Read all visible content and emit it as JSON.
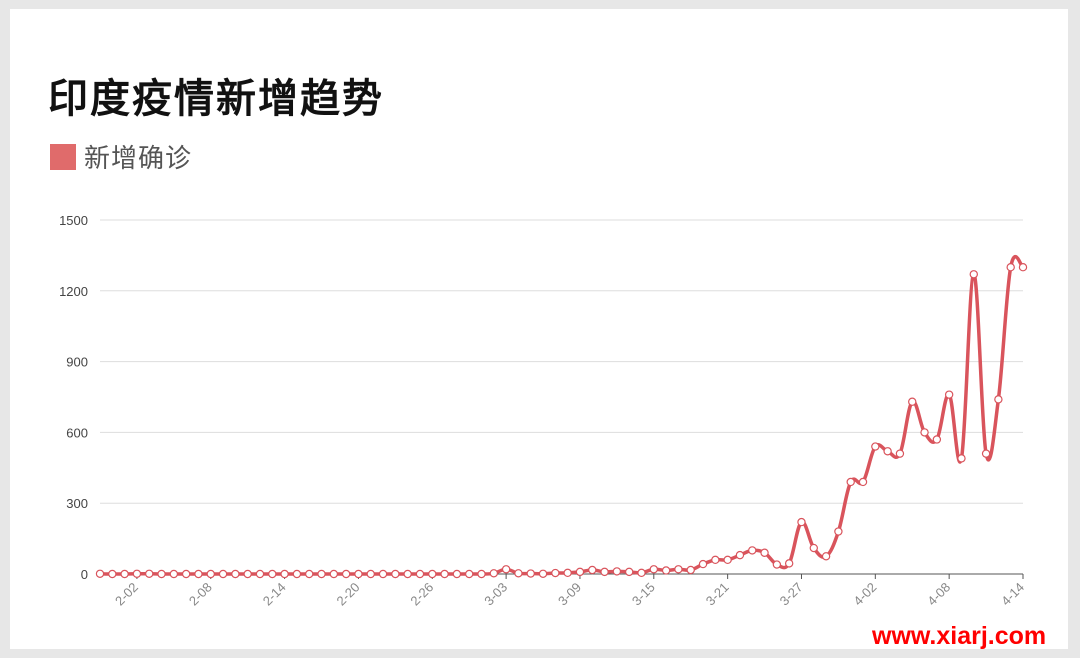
{
  "title": "印度疫情新增趋势",
  "legend_label": "新增确诊",
  "watermark": "www.xiarj.com",
  "colors": {
    "series": "#d9545c",
    "legend": "#e06b6b",
    "grid": "#dddddd",
    "axis": "#555555",
    "watermark": "#ff0000"
  },
  "chart_data": {
    "type": "line",
    "title": "印度疫情新增趋势",
    "xlabel": "",
    "ylabel": "",
    "ylim": [
      0,
      1500
    ],
    "yticks": [
      0,
      300,
      600,
      900,
      1200,
      1500
    ],
    "xtick_labels": [
      "2-02",
      "2-08",
      "2-14",
      "2-20",
      "2-26",
      "3-03",
      "3-09",
      "3-15",
      "3-21",
      "3-27",
      "4-02",
      "4-08",
      "4-14"
    ],
    "grid": true,
    "legend_position": "top-left",
    "x": [
      "1-30",
      "1-31",
      "2-01",
      "2-02",
      "2-03",
      "2-04",
      "2-05",
      "2-06",
      "2-07",
      "2-08",
      "2-09",
      "2-10",
      "2-11",
      "2-12",
      "2-13",
      "2-14",
      "2-15",
      "2-16",
      "2-17",
      "2-18",
      "2-19",
      "2-20",
      "2-21",
      "2-22",
      "2-23",
      "2-24",
      "2-25",
      "2-26",
      "2-27",
      "2-28",
      "2-29",
      "3-01",
      "3-02",
      "3-03",
      "3-04",
      "3-05",
      "3-06",
      "3-07",
      "3-08",
      "3-09",
      "3-10",
      "3-11",
      "3-12",
      "3-13",
      "3-14",
      "3-15",
      "3-16",
      "3-17",
      "3-18",
      "3-19",
      "3-20",
      "3-21",
      "3-22",
      "3-23",
      "3-24",
      "3-25",
      "3-26",
      "3-27",
      "3-28",
      "3-29",
      "3-30",
      "3-31",
      "4-01",
      "4-02",
      "4-03",
      "4-04",
      "4-05",
      "4-06",
      "4-07",
      "4-08",
      "4-09",
      "4-10",
      "4-11",
      "4-12",
      "4-13",
      "4-14"
    ],
    "series": [
      {
        "name": "新增确诊",
        "values": [
          1,
          0,
          0,
          1,
          1,
          0,
          0,
          0,
          0,
          0,
          0,
          0,
          0,
          0,
          0,
          0,
          0,
          0,
          0,
          0,
          0,
          0,
          0,
          0,
          0,
          0,
          0,
          0,
          0,
          0,
          0,
          0,
          3,
          20,
          3,
          2,
          1,
          4,
          5,
          9,
          17,
          9,
          11,
          9,
          5,
          20,
          15,
          20,
          17,
          42,
          60,
          60,
          80,
          100,
          90,
          40,
          45,
          220,
          110,
          75,
          180,
          390,
          390,
          540,
          520,
          510,
          730,
          600,
          570,
          760,
          490,
          1270,
          510,
          740,
          1300,
          1300
        ]
      }
    ]
  }
}
